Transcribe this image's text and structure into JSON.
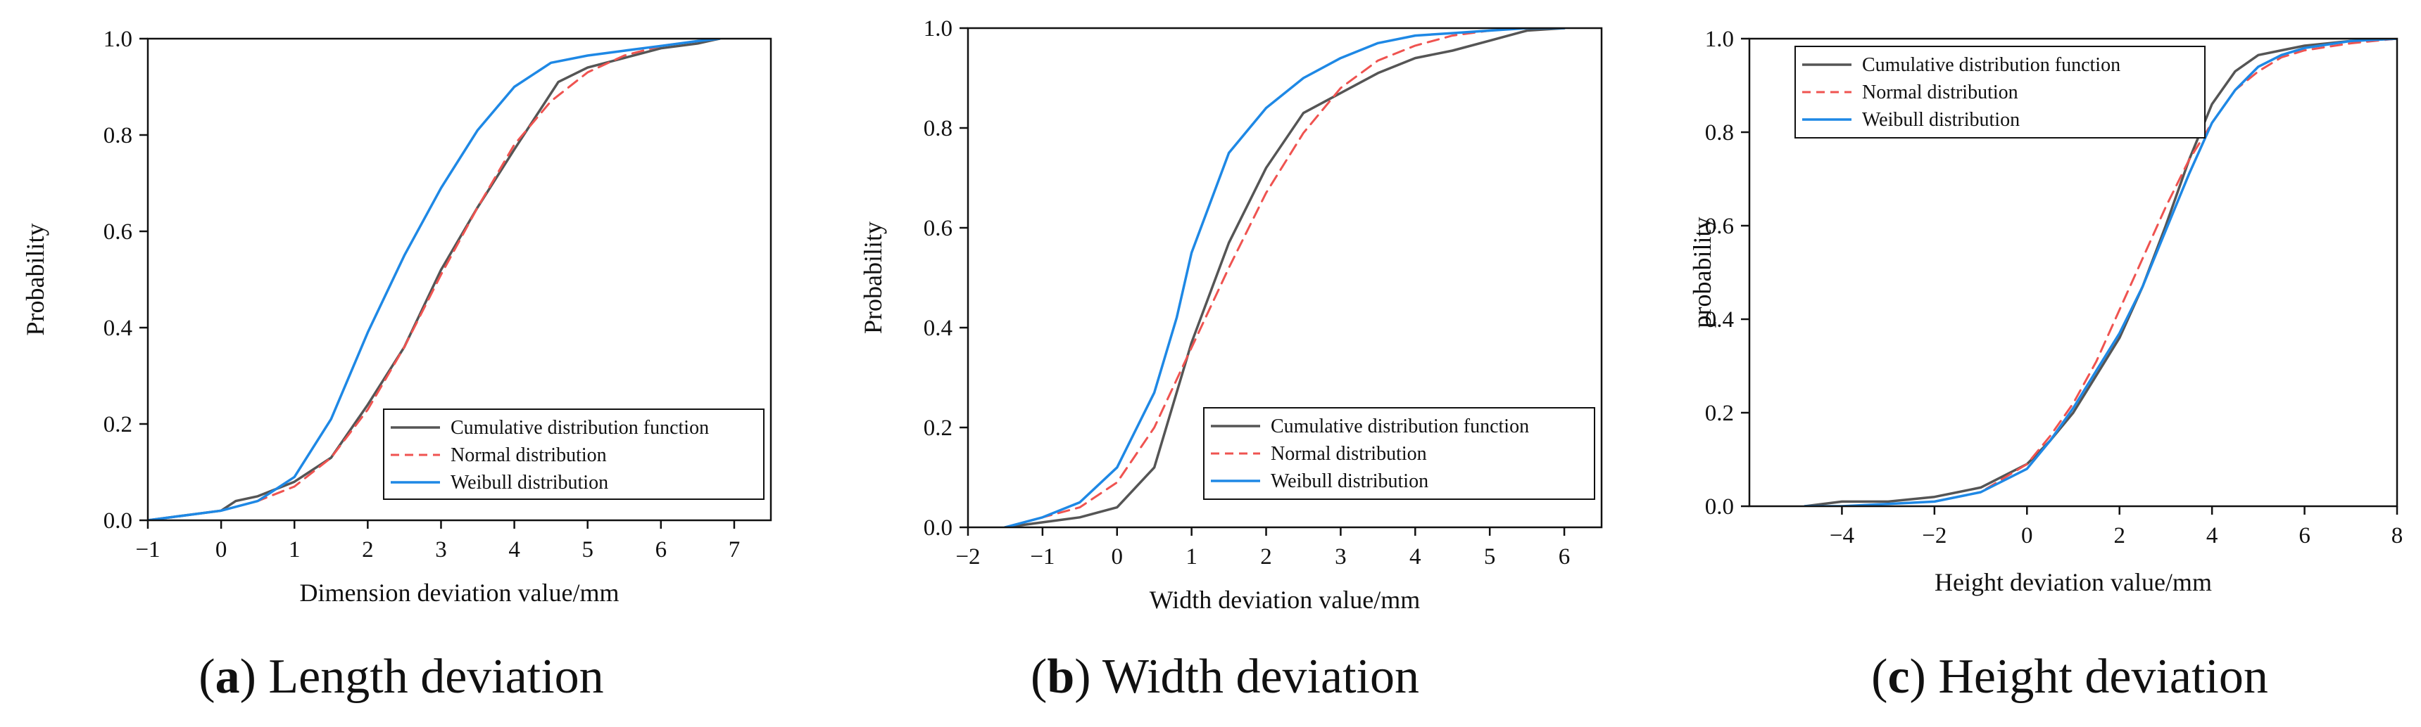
{
  "colors": {
    "cdf": "#555555",
    "normal": "#ef5350",
    "weibull": "#1e88e5",
    "axis": "#111111"
  },
  "chart_data": [
    {
      "type": "line",
      "caption": {
        "letter": "a",
        "open": "(",
        "close": ")",
        "text": " Length deviation"
      },
      "xlabel": "Dimension deviation value/mm",
      "ylabel": "Probability",
      "xlim": [
        -1,
        7.5
      ],
      "ylim": [
        0,
        1
      ],
      "xticks": [
        -1,
        0,
        1,
        2,
        3,
        4,
        5,
        6,
        7
      ],
      "xtick_labels": [
        "−1",
        "0",
        "1",
        "2",
        "3",
        "4",
        "5",
        "6",
        "7"
      ],
      "yticks": [
        0,
        0.2,
        0.4,
        0.6,
        0.8,
        1.0
      ],
      "ytick_labels": [
        "0.0",
        "0.2",
        "0.4",
        "0.6",
        "0.8",
        "1.0"
      ],
      "legend": {
        "position": "bottom-right",
        "entries": [
          "Cumulative distribution function",
          "Normal distribution",
          "Weibull distribution"
        ]
      },
      "series": [
        {
          "name": "Cumulative distribution function",
          "style": "cdf",
          "x": [
            -1.0,
            -0.5,
            0.0,
            0.2,
            0.5,
            1.0,
            1.5,
            2.0,
            2.5,
            3.0,
            3.5,
            4.0,
            4.3,
            4.6,
            5.0,
            5.5,
            6.0,
            6.5,
            6.8
          ],
          "y": [
            0.0,
            0.01,
            0.02,
            0.04,
            0.05,
            0.08,
            0.13,
            0.24,
            0.36,
            0.52,
            0.65,
            0.77,
            0.84,
            0.91,
            0.94,
            0.96,
            0.98,
            0.99,
            1.0
          ]
        },
        {
          "name": "Normal distribution",
          "style": "normal",
          "x": [
            -1.0,
            -0.5,
            0.0,
            0.5,
            1.0,
            1.5,
            2.0,
            2.5,
            3.0,
            3.5,
            4.0,
            4.5,
            5.0,
            5.5,
            6.0,
            6.5,
            6.8
          ],
          "y": [
            0.0,
            0.01,
            0.02,
            0.04,
            0.07,
            0.13,
            0.23,
            0.36,
            0.51,
            0.65,
            0.78,
            0.87,
            0.93,
            0.965,
            0.985,
            0.995,
            1.0
          ]
        },
        {
          "name": "Weibull distribution",
          "style": "weibull",
          "x": [
            -1.0,
            -0.5,
            0.0,
            0.5,
            1.0,
            1.5,
            2.0,
            2.5,
            3.0,
            3.5,
            4.0,
            4.5,
            5.0,
            5.5,
            6.0,
            6.5,
            6.8
          ],
          "y": [
            0.0,
            0.01,
            0.02,
            0.04,
            0.09,
            0.21,
            0.39,
            0.55,
            0.69,
            0.81,
            0.9,
            0.95,
            0.965,
            0.975,
            0.985,
            0.995,
            1.0
          ]
        }
      ]
    },
    {
      "type": "line",
      "caption": {
        "letter": "b",
        "open": "(",
        "close": ")",
        "text": " Width deviation"
      },
      "xlabel": "Width deviation value/mm",
      "ylabel": "Probability",
      "xlim": [
        -2,
        6.5
      ],
      "ylim": [
        0,
        1
      ],
      "xticks": [
        -2,
        -1,
        0,
        1,
        2,
        3,
        4,
        5,
        6
      ],
      "xtick_labels": [
        "−2",
        "−1",
        "0",
        "1",
        "2",
        "3",
        "4",
        "5",
        "6"
      ],
      "yticks": [
        0,
        0.2,
        0.4,
        0.6,
        0.8,
        1.0
      ],
      "ytick_labels": [
        "0.0",
        "0.2",
        "0.4",
        "0.6",
        "0.8",
        "1.0"
      ],
      "legend": {
        "position": "bottom-right",
        "entries": [
          "Cumulative distribution function",
          "Normal distribution",
          "Weibull distribution"
        ]
      },
      "series": [
        {
          "name": "Cumulative distribution function",
          "style": "cdf",
          "x": [
            -1.5,
            -1.0,
            -0.5,
            0.0,
            0.5,
            1.0,
            1.5,
            2.0,
            2.5,
            3.0,
            3.5,
            4.0,
            4.5,
            5.0,
            5.5,
            6.0
          ],
          "y": [
            0.0,
            0.01,
            0.02,
            0.04,
            0.12,
            0.37,
            0.57,
            0.72,
            0.83,
            0.87,
            0.91,
            0.94,
            0.955,
            0.975,
            0.995,
            1.0
          ]
        },
        {
          "name": "Normal distribution",
          "style": "normal",
          "x": [
            -1.5,
            -1.0,
            -0.5,
            0.0,
            0.5,
            1.0,
            1.5,
            2.0,
            2.5,
            3.0,
            3.5,
            4.0,
            4.5,
            5.0,
            5.5,
            6.0
          ],
          "y": [
            0.0,
            0.02,
            0.04,
            0.09,
            0.2,
            0.36,
            0.52,
            0.67,
            0.79,
            0.88,
            0.935,
            0.965,
            0.985,
            0.995,
            1.0,
            1.0
          ]
        },
        {
          "name": "Weibull distribution",
          "style": "weibull",
          "x": [
            -1.5,
            -1.0,
            -0.5,
            0.0,
            0.5,
            0.8,
            1.0,
            1.5,
            2.0,
            2.5,
            3.0,
            3.5,
            4.0,
            4.5,
            5.0,
            5.5,
            6.0
          ],
          "y": [
            0.0,
            0.02,
            0.05,
            0.12,
            0.27,
            0.42,
            0.55,
            0.75,
            0.84,
            0.9,
            0.94,
            0.97,
            0.985,
            0.99,
            0.995,
            1.0,
            1.0
          ]
        }
      ]
    },
    {
      "type": "line",
      "caption": {
        "letter": "c",
        "open": "(",
        "close": ")",
        "text": " Height deviation"
      },
      "xlabel": "Height deviation value/mm",
      "ylabel": "probability",
      "xlim": [
        -6,
        8
      ],
      "ylim": [
        0,
        1
      ],
      "xticks": [
        -4,
        -2,
        0,
        2,
        4,
        6,
        8
      ],
      "xtick_labels": [
        "−4",
        "−2",
        "0",
        "2",
        "4",
        "6",
        "8"
      ],
      "yticks": [
        0,
        0.2,
        0.4,
        0.6,
        0.8,
        1.0
      ],
      "ytick_labels": [
        "0.0",
        "0.2",
        "0.4",
        "0.6",
        "0.8",
        "1.0"
      ],
      "legend": {
        "position": "top-left",
        "entries": [
          "Cumulative distribution function",
          "Normal distribution",
          "Weibull distribution"
        ]
      },
      "series": [
        {
          "name": "Cumulative distribution function",
          "style": "cdf",
          "x": [
            -4.8,
            -4.0,
            -3.0,
            -2.0,
            -1.0,
            0.0,
            0.5,
            1.0,
            1.5,
            2.0,
            2.5,
            3.0,
            3.5,
            4.0,
            4.5,
            5.0,
            5.5,
            6.0,
            7.0,
            8.0
          ],
          "y": [
            0.0,
            0.01,
            0.01,
            0.02,
            0.04,
            0.09,
            0.14,
            0.2,
            0.28,
            0.36,
            0.47,
            0.6,
            0.74,
            0.86,
            0.93,
            0.965,
            0.975,
            0.985,
            0.995,
            1.0
          ]
        },
        {
          "name": "Normal distribution",
          "style": "normal",
          "x": [
            -4.8,
            -4.0,
            -3.0,
            -2.0,
            -1.0,
            0.0,
            0.5,
            1.0,
            1.5,
            2.0,
            2.5,
            3.0,
            3.5,
            4.0,
            4.5,
            5.0,
            5.5,
            6.0,
            7.0,
            8.0
          ],
          "y": [
            0.0,
            0.0,
            0.005,
            0.01,
            0.03,
            0.09,
            0.15,
            0.22,
            0.31,
            0.42,
            0.53,
            0.64,
            0.74,
            0.82,
            0.89,
            0.93,
            0.96,
            0.975,
            0.99,
            1.0
          ]
        },
        {
          "name": "Weibull distribution",
          "style": "weibull",
          "x": [
            -4.8,
            -4.0,
            -3.0,
            -2.0,
            -1.0,
            0.0,
            0.5,
            1.0,
            1.5,
            2.0,
            2.5,
            3.0,
            3.5,
            4.0,
            4.5,
            5.0,
            5.5,
            6.0,
            7.0,
            8.0
          ],
          "y": [
            0.0,
            0.0,
            0.005,
            0.01,
            0.03,
            0.08,
            0.14,
            0.21,
            0.29,
            0.37,
            0.47,
            0.59,
            0.71,
            0.82,
            0.89,
            0.94,
            0.965,
            0.98,
            0.995,
            1.0
          ]
        }
      ]
    }
  ]
}
